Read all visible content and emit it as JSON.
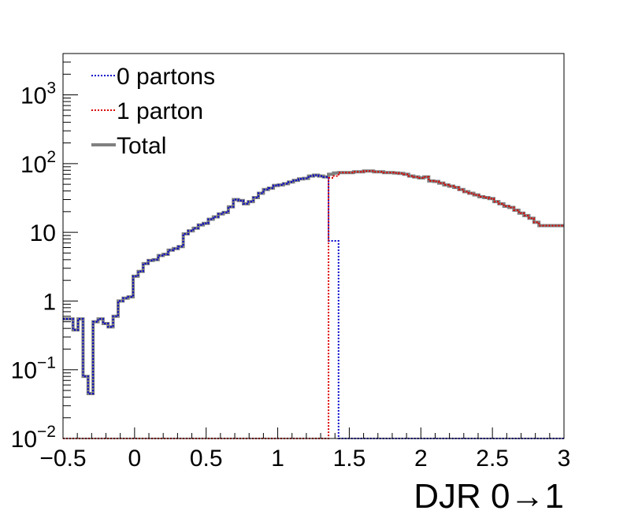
{
  "chart_data": {
    "type": "line",
    "style": "step-histogram",
    "xlabel": "DJR 0→1",
    "ylabel": "",
    "xlim": [
      -0.5,
      3.0
    ],
    "ylim": [
      0.01,
      4000
    ],
    "yscale": "log",
    "grid": false,
    "legend_position": "top-left",
    "x_ticks": [
      {
        "value": -0.5,
        "label": "−0.5"
      },
      {
        "value": 0,
        "label": "0"
      },
      {
        "value": 0.5,
        "label": "0.5"
      },
      {
        "value": 1,
        "label": "1"
      },
      {
        "value": 1.5,
        "label": "1.5"
      },
      {
        "value": 2,
        "label": "2"
      },
      {
        "value": 2.5,
        "label": "2.5"
      },
      {
        "value": 3,
        "label": "3"
      }
    ],
    "y_ticks": [
      {
        "value": 0.01,
        "base": "10",
        "exp": "−2"
      },
      {
        "value": 0.1,
        "base": "10",
        "exp": "−1"
      },
      {
        "value": 1,
        "base": "1",
        "exp": ""
      },
      {
        "value": 10,
        "base": "10",
        "exp": ""
      },
      {
        "value": 100,
        "base": "10",
        "exp": "2"
      },
      {
        "value": 1000,
        "base": "10",
        "exp": "3"
      }
    ],
    "bin_edges": [
      -0.5,
      3.0
    ],
    "series": [
      {
        "name": "0 partons",
        "color": "#0000cc",
        "line": "dotted",
        "values": [
          0.55,
          0.55,
          0.38,
          0.55,
          0.08,
          0.045,
          0.5,
          0.55,
          0.47,
          0.42,
          0.6,
          1.0,
          1.1,
          1.15,
          2.3,
          2.7,
          3.5,
          3.9,
          4.0,
          4.6,
          4.8,
          5.5,
          5.8,
          6.2,
          9.5,
          10.5,
          11.5,
          12.8,
          13.5,
          15.5,
          16.8,
          18.5,
          19.5,
          23.5,
          30,
          29,
          26,
          28,
          32,
          37,
          42,
          44,
          48,
          49,
          51,
          54,
          57,
          60,
          61,
          66,
          68,
          66,
          64,
          7.5,
          7.5,
          0.01,
          0.01,
          0.01,
          0.01,
          0.01,
          0.01,
          0.01,
          0.01,
          0.01,
          0.01,
          0.01,
          0.01,
          0.01,
          0.01,
          0.01,
          0.01,
          0.01,
          0.01,
          0.01,
          0.01,
          0.01,
          0.01,
          0.01,
          0.01,
          0.01,
          0.01,
          0.01,
          0.01,
          0.01,
          0.01,
          0.01,
          0.01,
          0.01,
          0.01,
          0.01,
          0.01,
          0.01,
          0.01,
          0.01,
          0.01,
          0.01,
          0.01,
          0.01,
          0.01,
          0.01
        ]
      },
      {
        "name": "1 parton",
        "color": "#dd0000",
        "line": "dotted",
        "values": [
          0.01,
          0.01,
          0.01,
          0.01,
          0.01,
          0.01,
          0.01,
          0.01,
          0.01,
          0.01,
          0.01,
          0.01,
          0.01,
          0.01,
          0.01,
          0.01,
          0.01,
          0.01,
          0.01,
          0.01,
          0.01,
          0.01,
          0.01,
          0.01,
          0.01,
          0.01,
          0.01,
          0.01,
          0.01,
          0.01,
          0.01,
          0.01,
          0.01,
          0.01,
          0.01,
          0.01,
          0.01,
          0.01,
          0.01,
          0.01,
          0.01,
          0.01,
          0.01,
          0.01,
          0.01,
          0.01,
          0.01,
          0.01,
          0.01,
          0.01,
          0.01,
          0.01,
          0.01,
          62,
          66,
          74,
          74,
          74,
          76,
          76,
          78,
          78,
          76,
          76,
          74,
          74,
          73,
          72,
          70,
          66,
          64,
          62,
          64,
          56,
          55,
          52,
          49,
          47,
          45,
          42,
          39,
          37,
          35,
          33,
          32,
          31,
          28,
          26,
          24,
          23,
          21,
          19,
          17.5,
          16,
          14,
          12.5,
          12.5,
          12.5,
          12.5,
          12.5
        ]
      },
      {
        "name": "Total",
        "color": "#808080",
        "line": "solid",
        "values": [
          0.55,
          0.55,
          0.38,
          0.55,
          0.08,
          0.045,
          0.5,
          0.55,
          0.47,
          0.42,
          0.6,
          1.0,
          1.1,
          1.15,
          2.3,
          2.7,
          3.5,
          3.9,
          4.0,
          4.6,
          4.8,
          5.5,
          5.8,
          6.2,
          9.5,
          10.5,
          11.5,
          12.8,
          13.5,
          15.5,
          16.8,
          18.5,
          19.5,
          23.5,
          30,
          29,
          26,
          28,
          32,
          37,
          42,
          44,
          48,
          49,
          51,
          54,
          57,
          60,
          61,
          66,
          68,
          66,
          64,
          70,
          73,
          74,
          74,
          74,
          76,
          76,
          78,
          78,
          76,
          76,
          74,
          74,
          73,
          72,
          70,
          66,
          64,
          62,
          64,
          56,
          55,
          52,
          49,
          47,
          45,
          42,
          39,
          37,
          35,
          33,
          32,
          31,
          28,
          26,
          24,
          23,
          21,
          19,
          17.5,
          16,
          14,
          12.5,
          12.5,
          12.5,
          12.5,
          12.5
        ]
      }
    ]
  }
}
